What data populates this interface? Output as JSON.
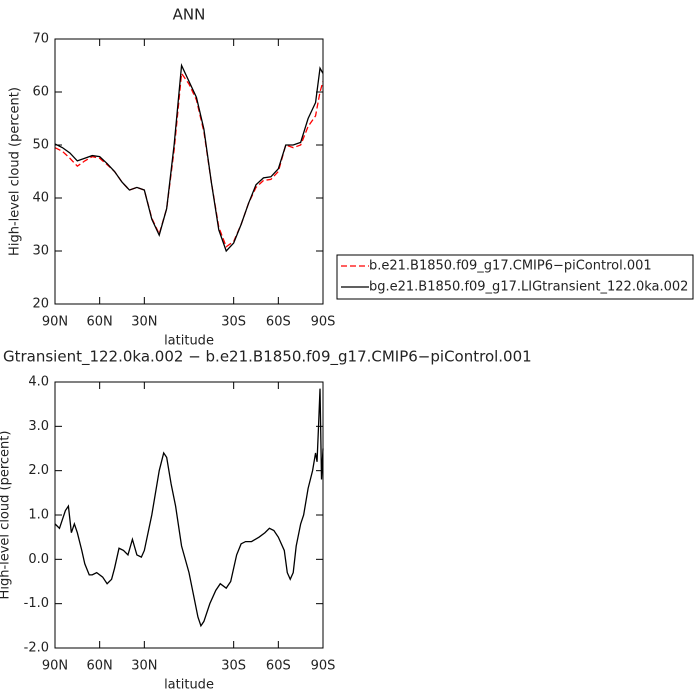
{
  "chart_data": [
    {
      "type": "line",
      "title": "ANN",
      "y_label": "High-level cloud (percent)",
      "x_label": "latitude",
      "xlim": [
        90,
        -90
      ],
      "xticks": [
        {
          "value": 90,
          "label": "90N"
        },
        {
          "value": 60,
          "label": "60N"
        },
        {
          "value": 30,
          "label": "30N"
        },
        {
          "value": -30,
          "label": "30S"
        },
        {
          "value": -60,
          "label": "60S"
        },
        {
          "value": -90,
          "label": "90S"
        }
      ],
      "ylim": [
        20,
        70
      ],
      "yticks": [
        20,
        30,
        40,
        50,
        60,
        70
      ],
      "legend": "right",
      "x": [
        90,
        85,
        80,
        75,
        70,
        65,
        60,
        55,
        50,
        45,
        40,
        35,
        30,
        25,
        20,
        15,
        10,
        5,
        0,
        -5,
        -10,
        -15,
        -20,
        -25,
        -30,
        -35,
        -40,
        -45,
        -50,
        -55,
        -60,
        -65,
        -70,
        -75,
        -80,
        -85,
        -88,
        -90
      ],
      "series": [
        {
          "name": "b.e21.B1850.f09_g17.CMIP6−piControl.001",
          "color": "#ff0000",
          "dashed": true,
          "values": [
            49.5,
            48.8,
            47.5,
            46,
            47,
            47.8,
            47.5,
            46.3,
            45,
            43,
            41.5,
            42,
            41.5,
            36.2,
            33.2,
            38,
            49,
            63.5,
            61.5,
            58.5,
            52.5,
            43,
            34.5,
            30.8,
            31.8,
            35,
            39,
            42,
            43.3,
            43.5,
            45,
            50,
            49.5,
            50,
            53.5,
            55.5,
            60,
            62
          ]
        },
        {
          "name": "bg.e21.B1850.f09_g17.LIGtransient_122.0ka.002",
          "color": "#000000",
          "dashed": false,
          "values": [
            50.2,
            49.5,
            48.5,
            47,
            47.5,
            48,
            47.8,
            46.5,
            45,
            43,
            41.5,
            42,
            41.5,
            36,
            33,
            38,
            50,
            65,
            62,
            59,
            53,
            43,
            34,
            30,
            31.5,
            35,
            39,
            42.5,
            43.8,
            44,
            45.5,
            50,
            50,
            50.5,
            55,
            58,
            64.5,
            63.5
          ]
        }
      ]
    },
    {
      "type": "line",
      "title": "Gtransient_122.0ka.002 − b.e21.B1850.f09_g17.CMIP6−piControl.001",
      "y_label": "High-level cloud (percent)",
      "x_label": "latitude",
      "xlim": [
        90,
        -90
      ],
      "xticks": [
        {
          "value": 90,
          "label": "90N"
        },
        {
          "value": 60,
          "label": "60N"
        },
        {
          "value": 30,
          "label": "30N"
        },
        {
          "value": -30,
          "label": "30S"
        },
        {
          "value": -60,
          "label": "60S"
        },
        {
          "value": -90,
          "label": "90S"
        }
      ],
      "ylim": [
        -2,
        4
      ],
      "yticks": [
        {
          "value": -2,
          "label": "-2.0"
        },
        {
          "value": -1,
          "label": "-1.0"
        },
        {
          "value": 0,
          "label": "0.0"
        },
        {
          "value": 1,
          "label": "1.0"
        },
        {
          "value": 2,
          "label": "2.0"
        },
        {
          "value": 3,
          "label": "3.0"
        },
        {
          "value": 4,
          "label": "4.0"
        }
      ],
      "x": [
        90,
        87,
        83,
        81,
        79,
        77,
        75,
        72,
        70,
        67,
        65,
        62,
        58,
        55,
        52,
        50,
        47,
        44,
        41,
        38,
        35,
        32,
        30,
        25,
        20,
        17,
        15,
        12,
        9,
        5,
        0,
        -3,
        -6,
        -8,
        -10,
        -14,
        -18,
        -21,
        -25,
        -28,
        -32,
        -35,
        -38,
        -42,
        -47,
        -51,
        -54,
        -57,
        -60,
        -64,
        -66,
        -68,
        -70,
        -72,
        -75,
        -77,
        -80,
        -83,
        -85,
        -86,
        -87,
        -88,
        -89,
        -90
      ],
      "series": [
        {
          "color": "#000000",
          "dashed": false,
          "values": [
            0.8,
            0.7,
            1.1,
            1.2,
            0.6,
            0.8,
            0.6,
            0.2,
            -0.1,
            -0.35,
            -0.35,
            -0.3,
            -0.4,
            -0.55,
            -0.45,
            -0.2,
            0.25,
            0.2,
            0.1,
            0.45,
            0.1,
            0.05,
            0.2,
            1.0,
            2.0,
            2.4,
            2.3,
            1.7,
            1.2,
            0.3,
            -0.3,
            -0.8,
            -1.3,
            -1.5,
            -1.4,
            -1.0,
            -0.7,
            -0.55,
            -0.65,
            -0.5,
            0.1,
            0.35,
            0.4,
            0.4,
            0.5,
            0.6,
            0.7,
            0.65,
            0.5,
            0.2,
            -0.3,
            -0.45,
            -0.3,
            0.3,
            0.8,
            1.0,
            1.6,
            2.0,
            2.4,
            2.2,
            3.0,
            3.85,
            1.8,
            2.5
          ]
        }
      ]
    }
  ]
}
